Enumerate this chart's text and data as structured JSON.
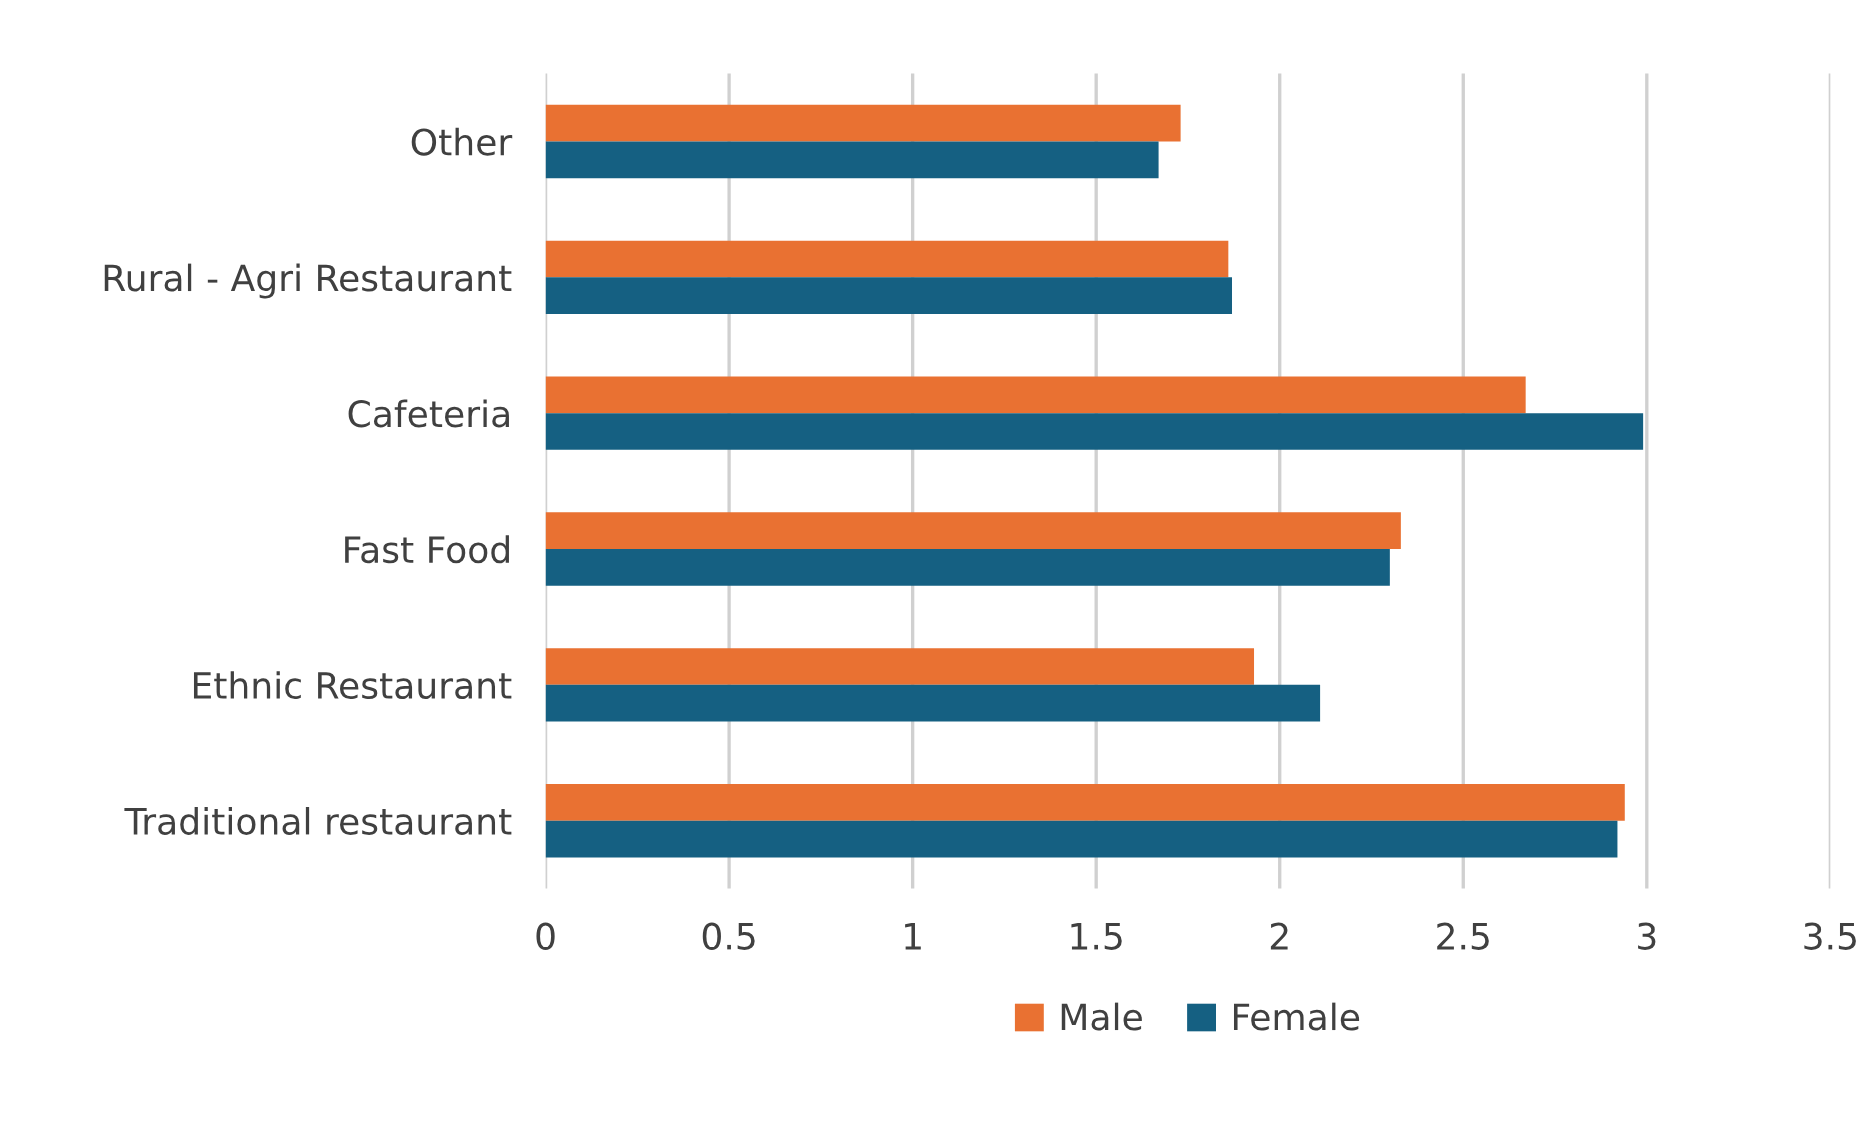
{
  "chart_data": {
    "type": "bar",
    "orientation": "horizontal",
    "categories": [
      "Other",
      "Rural - Agri Restaurant",
      "Cafeteria",
      "Fast Food",
      "Ethnic Restaurant",
      "Traditional restaurant"
    ],
    "series": [
      {
        "name": "Male",
        "color": "#e97132",
        "values": [
          1.73,
          1.86,
          2.67,
          2.33,
          1.93,
          2.94
        ]
      },
      {
        "name": "Female",
        "color": "#156082",
        "values": [
          1.67,
          1.87,
          2.99,
          2.3,
          2.11,
          2.92
        ]
      }
    ],
    "xlim": [
      0,
      3.5
    ],
    "xticks": [
      0,
      0.5,
      1,
      1.5,
      2,
      2.5,
      3,
      3.5
    ],
    "grid": "x",
    "legend": "bottom"
  }
}
